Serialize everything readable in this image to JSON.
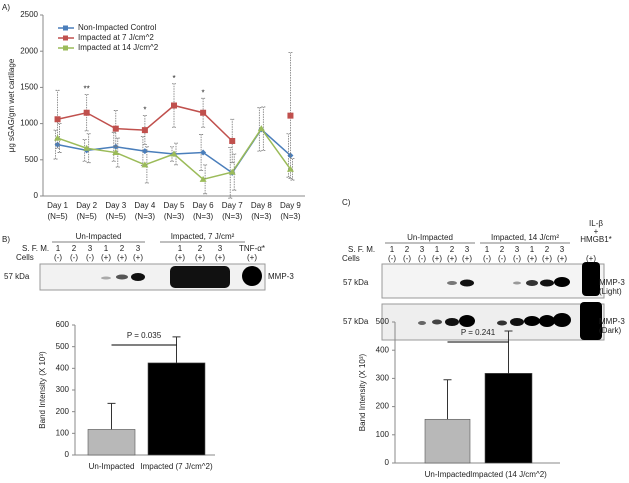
{
  "panels": {
    "a": "A)",
    "b": "B)",
    "c": "C)"
  },
  "chart_data": [
    {
      "type": "line",
      "y_label": "μg sGAG/gm wet cartilage",
      "categories": [
        "Day 1",
        "Day 2",
        "Day 3",
        "Day 4",
        "Day 5",
        "Day 6",
        "Day 7",
        "Day 8",
        "Day 9"
      ],
      "n_labels": [
        "(N=5)",
        "(N=5)",
        "(N=5)",
        "(N=3)",
        "(N=3)",
        "(N=3)",
        "(N=3)",
        "(N=3)",
        "(N=3)"
      ],
      "ylim": [
        0,
        2500
      ],
      "yticks": [
        0,
        500,
        1000,
        1500,
        2000,
        2500
      ],
      "legend": "top-left",
      "series": [
        {
          "name": "Non-Impacted Control",
          "color": "#4a7ebb",
          "marker": "diamond",
          "values": [
            710,
            630,
            680,
            620,
            580,
            600,
            320,
            920,
            560
          ],
          "errors": [
            200,
            150,
            200,
            200,
            100,
            250,
            350,
            300,
            300
          ]
        },
        {
          "name": "Impacted at 7 J/cm^2",
          "color": "#c0504d",
          "marker": "square",
          "values": [
            1060,
            1150,
            930,
            910,
            1250,
            1150,
            760,
            null,
            1110
          ],
          "errors": [
            400,
            250,
            250,
            200,
            300,
            200,
            300,
            null,
            870
          ]
        },
        {
          "name": "Impacted at 14 J/cm^2",
          "color": "#9bbb59",
          "marker": "triangle",
          "values": [
            800,
            660,
            600,
            430,
            580,
            230,
            330,
            930,
            370
          ],
          "errors": [
            200,
            200,
            200,
            250,
            150,
            200,
            250,
            300,
            150
          ]
        }
      ],
      "annotations": [
        {
          "label": "**",
          "x": "Day 2"
        },
        {
          "label": "*",
          "x": "Day 4"
        },
        {
          "label": "*",
          "x": "Day 5"
        },
        {
          "label": "*",
          "x": "Day 6"
        }
      ]
    },
    {
      "type": "bar",
      "y_label": "Band Intensity (X 10³)",
      "categories": [
        "Un-Impacted",
        "Impacted (7 J/cm^2)"
      ],
      "values": [
        118,
        425
      ],
      "errors": [
        120,
        120
      ],
      "colors": [
        "#b8b8b8",
        "#000000"
      ],
      "ylim": [
        0,
        600
      ],
      "yticks": [
        0,
        100,
        200,
        300,
        400,
        500,
        600
      ],
      "annotation": "P = 0.035"
    },
    {
      "type": "bar",
      "y_label": "Band Intensity (X 10³)",
      "categories": [
        "Un-Impacted",
        "Impacted (14 J/cm^2)"
      ],
      "values": [
        155,
        318
      ],
      "errors": [
        140,
        150
      ],
      "colors": [
        "#b8b8b8",
        "#000000"
      ],
      "ylim": [
        0,
        500
      ],
      "yticks": [
        0,
        100,
        200,
        300,
        400,
        500
      ],
      "annotation": "P = 0.241"
    }
  ],
  "blots": [
    {
      "groups": [
        "Un-Impacted",
        "Impacted, 7 J/cm²"
      ],
      "row_labels": [
        "S. F. M.",
        "Cells"
      ],
      "sfm": [
        "1",
        "2",
        "3",
        "1",
        "2",
        "3",
        "1",
        "2",
        "3",
        "TNF-α*"
      ],
      "cells": [
        "(-)",
        "(-)",
        "(-)",
        "(+)",
        "(+)",
        "(+)",
        "(+)",
        "(+)",
        "(+)",
        "(+)"
      ],
      "marker": "57 kDa",
      "strips": [
        [
          "MMP-3"
        ]
      ]
    },
    {
      "groups": [
        "Un-Impacted",
        "Impacted, 14 J/cm²"
      ],
      "row_labels": [
        "S. F. M.",
        "Cells"
      ],
      "sfm": [
        "1",
        "2",
        "3",
        "1",
        "2",
        "3",
        "1",
        "2",
        "3",
        "1",
        "2",
        "3"
      ],
      "cells": [
        "(-)",
        "(-)",
        "(-)",
        "(+)",
        "(+)",
        "(+)",
        "(-)",
        "(-)",
        "(-)",
        "(+)",
        "(+)",
        "(+)",
        "(+)"
      ],
      "treatment": [
        "IL-β",
        "+",
        "HMGB1*"
      ],
      "marker": "57 kDa",
      "strips": [
        [
          "MMP-3",
          "(Light)"
        ],
        [
          "MMP-3",
          "(Dark)"
        ]
      ]
    }
  ]
}
